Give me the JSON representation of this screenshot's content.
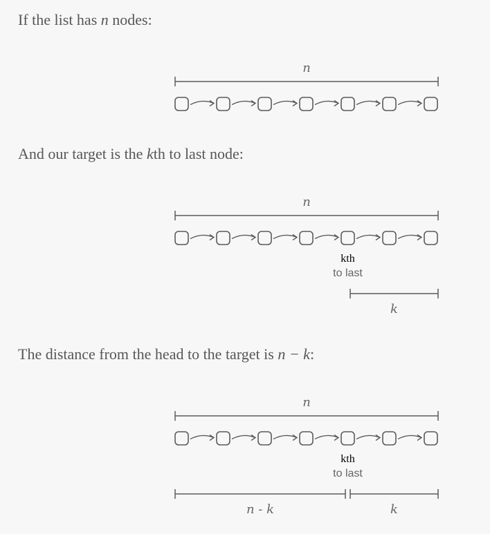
{
  "sections": [
    {
      "prefix": "If the list has ",
      "math": "n",
      "suffix": " nodes:"
    },
    {
      "prefix": "And our target is the ",
      "math": "k",
      "suffix": "th to last node:"
    },
    {
      "prefix": "The distance from the head to the target is ",
      "math": "n − k",
      "suffix": ":"
    }
  ],
  "diagram": {
    "node_count": 7,
    "n_label": "n",
    "k_label": "k",
    "kth_label_var": "k",
    "kth_label_suffix": "th",
    "kth_label_line2": "to last",
    "n_minus_k_label": "n - k",
    "stroke_color": "#5a5a5a"
  }
}
